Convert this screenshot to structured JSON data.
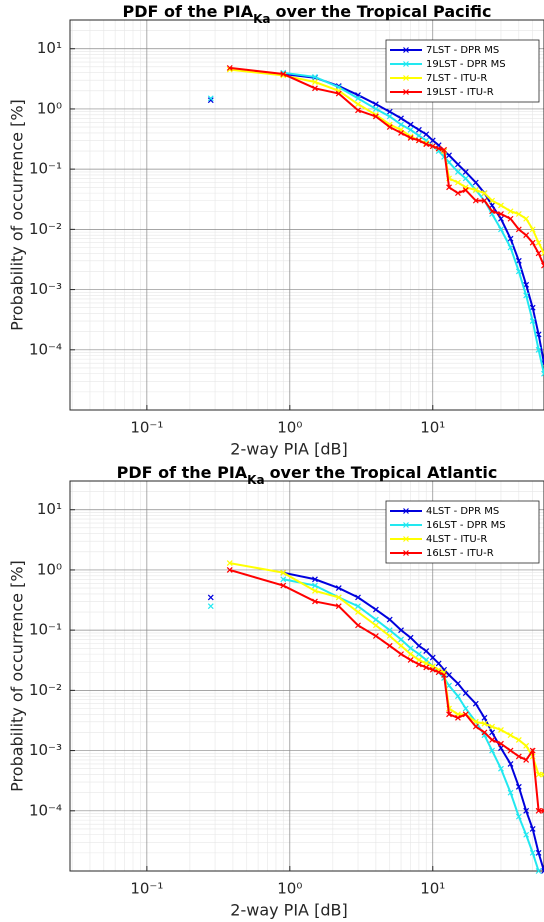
{
  "chart_data": [
    {
      "type": "line",
      "title": {
        "text": "PDF of the PIA",
        "subscript": "Ka",
        "rest": "over the Tropical Pacific"
      },
      "x_label": "2-way PIA [dB]",
      "y_label": "Probability of occurrence [%]",
      "x_scale": "log",
      "y_scale": "log",
      "grid": true,
      "minor_grid": true,
      "legend": "top-right",
      "xlim": [
        0.029,
        60
      ],
      "ylim": [
        1e-05,
        30
      ],
      "xticks": [
        {
          "value": 0.1,
          "label": "10⁻¹"
        },
        {
          "value": 1,
          "label": "10⁰"
        },
        {
          "value": 10,
          "label": "10¹"
        }
      ],
      "yticks": [
        {
          "value": 0.0001,
          "label": "10⁻⁴"
        },
        {
          "value": 0.001,
          "label": "10⁻³"
        },
        {
          "value": 0.01,
          "label": "10⁻²"
        },
        {
          "value": 0.1,
          "label": "10⁻¹"
        },
        {
          "value": 1,
          "label": "10⁰"
        },
        {
          "value": 10,
          "label": "10¹"
        }
      ],
      "x": [
        0.28,
        0.38,
        0.9,
        1.5,
        2.2,
        3,
        4,
        5,
        6,
        7,
        8,
        9,
        10,
        11,
        12,
        13,
        15,
        17,
        20,
        23,
        26,
        30,
        35,
        40,
        45,
        50,
        55,
        60
      ],
      "series": [
        {
          "name": "7LST - DPR MS",
          "color": "#0000dd",
          "values": [
            1.4,
            null,
            3.8,
            3.3,
            2.4,
            1.7,
            1.2,
            0.9,
            0.7,
            0.55,
            0.45,
            0.38,
            0.3,
            0.25,
            0.2,
            0.17,
            0.12,
            0.09,
            0.06,
            0.04,
            0.025,
            0.015,
            0.007,
            0.003,
            0.0012,
            0.0005,
            0.00018,
            6e-05
          ]
        },
        {
          "name": "19LST - DPR MS",
          "color": "#22e8f0",
          "values": [
            1.5,
            null,
            4,
            3.4,
            2.3,
            1.5,
            1.0,
            0.75,
            0.55,
            0.45,
            0.36,
            0.3,
            0.24,
            0.2,
            0.16,
            0.13,
            0.09,
            0.07,
            0.045,
            0.03,
            0.018,
            0.01,
            0.005,
            0.002,
            0.0008,
            0.0003,
            0.0001,
            4e-05
          ]
        },
        {
          "name": "7LST - ITU-R",
          "color": "#ffff00",
          "values": [
            null,
            4.5,
            3.6,
            2.8,
            2.0,
            1.2,
            0.8,
            0.55,
            0.45,
            0.35,
            0.3,
            0.27,
            0.24,
            0.22,
            0.2,
            0.07,
            0.06,
            0.05,
            0.045,
            0.04,
            0.03,
            0.025,
            0.02,
            0.018,
            0.015,
            0.01,
            0.006,
            0.004
          ]
        },
        {
          "name": "19LST - ITU-R",
          "color": "#ff0000",
          "values": [
            null,
            4.8,
            3.8,
            2.2,
            1.8,
            0.95,
            0.75,
            0.5,
            0.4,
            0.33,
            0.3,
            0.26,
            0.24,
            0.22,
            0.21,
            0.05,
            0.04,
            0.045,
            0.03,
            0.03,
            0.02,
            0.018,
            0.015,
            0.01,
            0.008,
            0.006,
            0.004,
            0.0025
          ]
        }
      ]
    },
    {
      "type": "line",
      "title": {
        "text": "PDF of the PIA",
        "subscript": "Ka",
        "rest": "over the Tropical Atlantic"
      },
      "x_label": "2-way PIA [dB]",
      "y_label": "Probability of occurrence [%]",
      "x_scale": "log",
      "y_scale": "log",
      "grid": true,
      "minor_grid": true,
      "legend": "top-right",
      "xlim": [
        0.029,
        60
      ],
      "ylim": [
        1e-05,
        30
      ],
      "xticks": [
        {
          "value": 0.1,
          "label": "10⁻¹"
        },
        {
          "value": 1,
          "label": "10⁰"
        },
        {
          "value": 10,
          "label": "10¹"
        }
      ],
      "yticks": [
        {
          "value": 0.0001,
          "label": "10⁻⁴"
        },
        {
          "value": 0.001,
          "label": "10⁻³"
        },
        {
          "value": 0.01,
          "label": "10⁻²"
        },
        {
          "value": 0.1,
          "label": "10⁻¹"
        },
        {
          "value": 1,
          "label": "10⁰"
        },
        {
          "value": 10,
          "label": "10¹"
        }
      ],
      "x": [
        0.28,
        0.38,
        0.9,
        1.5,
        2.2,
        3,
        4,
        5,
        6,
        7,
        8,
        9,
        10,
        11,
        12,
        13,
        15,
        17,
        20,
        23,
        26,
        30,
        35,
        40,
        45,
        50,
        55,
        60
      ],
      "series": [
        {
          "name": "4LST - DPR MS",
          "color": "#0000dd",
          "values": [
            0.35,
            null,
            0.9,
            0.7,
            0.5,
            0.35,
            0.22,
            0.15,
            0.1,
            0.075,
            0.055,
            0.045,
            0.035,
            0.028,
            0.022,
            0.018,
            0.013,
            0.009,
            0.006,
            0.0035,
            0.002,
            0.0011,
            0.0006,
            0.00025,
            0.0001,
            5e-05,
            2e-05,
            1e-05
          ]
        },
        {
          "name": "16LST - DPR MS",
          "color": "#22e8f0",
          "values": [
            0.25,
            null,
            0.7,
            0.55,
            0.35,
            0.25,
            0.15,
            0.1,
            0.07,
            0.05,
            0.04,
            0.032,
            0.025,
            0.02,
            0.016,
            0.012,
            0.008,
            0.005,
            0.003,
            0.0018,
            0.001,
            0.0005,
            0.0002,
            8e-05,
            4e-05,
            2e-05,
            1e-05,
            null
          ]
        },
        {
          "name": "4LST - ITU-R",
          "color": "#ffff00",
          "values": [
            null,
            1.3,
            0.9,
            0.45,
            0.35,
            0.2,
            0.12,
            0.08,
            0.055,
            0.04,
            0.032,
            0.028,
            0.025,
            0.022,
            0.02,
            0.005,
            0.004,
            0.004,
            0.003,
            0.0028,
            0.0025,
            0.0022,
            0.0018,
            0.0015,
            0.0012,
            0.0008,
            0.0004,
            0.0004
          ]
        },
        {
          "name": "16LST - ITU-R",
          "color": "#ff0000",
          "values": [
            null,
            1.0,
            0.55,
            0.3,
            0.25,
            0.12,
            0.08,
            0.055,
            0.04,
            0.032,
            0.027,
            0.024,
            0.022,
            0.02,
            0.018,
            0.004,
            0.0035,
            0.004,
            0.0025,
            0.002,
            0.0015,
            0.0013,
            0.001,
            0.0008,
            0.0007,
            0.001,
            0.0001,
            0.0001
          ]
        }
      ]
    }
  ]
}
